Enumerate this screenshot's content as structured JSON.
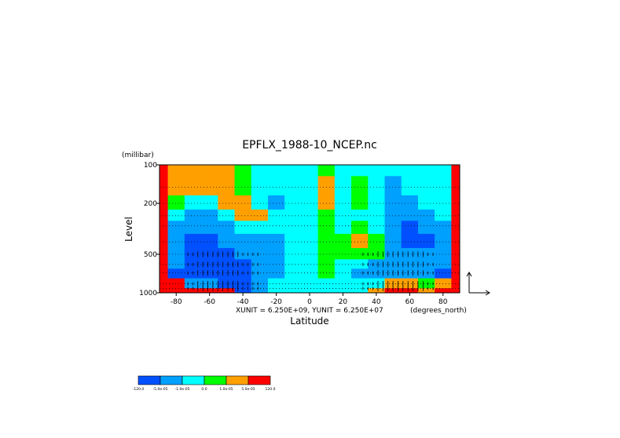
{
  "chart_data": {
    "type": "heatmap",
    "title": "EPFLX_1988-10_NCEP.nc",
    "xlabel": "Latitude",
    "x_unit_label": "(degrees_north)",
    "ylabel": "Level",
    "y_unit_label": "(millibar)",
    "vector_scale_text": "XUNIT = 6.250E+09, YUNIT = 6.250E+07",
    "xlim": [
      -90,
      90
    ],
    "ylim": [
      1000,
      100
    ],
    "y_scale": "log",
    "x_ticks": [
      -80,
      -60,
      -40,
      -20,
      0,
      20,
      40,
      60,
      80
    ],
    "y_ticks": [
      100,
      200,
      500,
      1000
    ],
    "grid_levels": [
      150,
      200,
      250,
      300,
      400,
      500,
      600,
      700,
      850,
      925
    ],
    "colorbar": {
      "colors": [
        "#0050ff",
        "#00a0ff",
        "#00ffff",
        "#00ff00",
        "#ffa000",
        "#ff0000"
      ],
      "boundary_labels": [
        "-120.0",
        "-5.0e-05",
        "-1.0e-05",
        "0.0",
        "1.0e-05",
        "5.0e-05",
        "120.0"
      ]
    },
    "field_sample": {
      "latitudes": [
        -90,
        -80,
        -70,
        -60,
        -50,
        -40,
        -30,
        -20,
        -10,
        0,
        10,
        20,
        30,
        40,
        50,
        60,
        70,
        80,
        90
      ],
      "levels": [
        100,
        150,
        200,
        250,
        300,
        400,
        500,
        600,
        700,
        850,
        1000
      ],
      "class_index_rows": [
        [
          5,
          4,
          4,
          4,
          4,
          3,
          2,
          2,
          2,
          2,
          3,
          2,
          2,
          2,
          2,
          2,
          2,
          2,
          5
        ],
        [
          5,
          4,
          4,
          4,
          4,
          3,
          2,
          2,
          2,
          2,
          4,
          2,
          3,
          2,
          1,
          2,
          2,
          2,
          5
        ],
        [
          5,
          3,
          2,
          2,
          4,
          4,
          2,
          1,
          2,
          2,
          4,
          2,
          3,
          2,
          1,
          1,
          2,
          2,
          5
        ],
        [
          5,
          2,
          1,
          1,
          2,
          4,
          4,
          2,
          2,
          2,
          3,
          2,
          2,
          2,
          1,
          1,
          1,
          2,
          5
        ],
        [
          5,
          1,
          1,
          1,
          1,
          2,
          2,
          2,
          2,
          2,
          3,
          2,
          3,
          2,
          1,
          0,
          1,
          1,
          5
        ],
        [
          5,
          1,
          0,
          0,
          1,
          1,
          1,
          1,
          2,
          2,
          3,
          3,
          4,
          3,
          1,
          0,
          0,
          1,
          5
        ],
        [
          5,
          1,
          0,
          0,
          0,
          1,
          1,
          1,
          2,
          2,
          3,
          3,
          3,
          3,
          1,
          1,
          1,
          1,
          5
        ],
        [
          5,
          1,
          0,
          0,
          0,
          0,
          1,
          1,
          2,
          2,
          3,
          2,
          2,
          1,
          1,
          1,
          1,
          1,
          5
        ],
        [
          5,
          0,
          0,
          0,
          0,
          0,
          1,
          1,
          2,
          2,
          3,
          2,
          1,
          1,
          1,
          1,
          1,
          0,
          5
        ],
        [
          5,
          5,
          1,
          1,
          0,
          0,
          1,
          2,
          2,
          2,
          2,
          2,
          2,
          2,
          4,
          4,
          3,
          4,
          5
        ],
        [
          5,
          5,
          5,
          5,
          5,
          0,
          1,
          2,
          2,
          2,
          2,
          2,
          2,
          4,
          5,
          5,
          4,
          5,
          5
        ]
      ]
    }
  }
}
